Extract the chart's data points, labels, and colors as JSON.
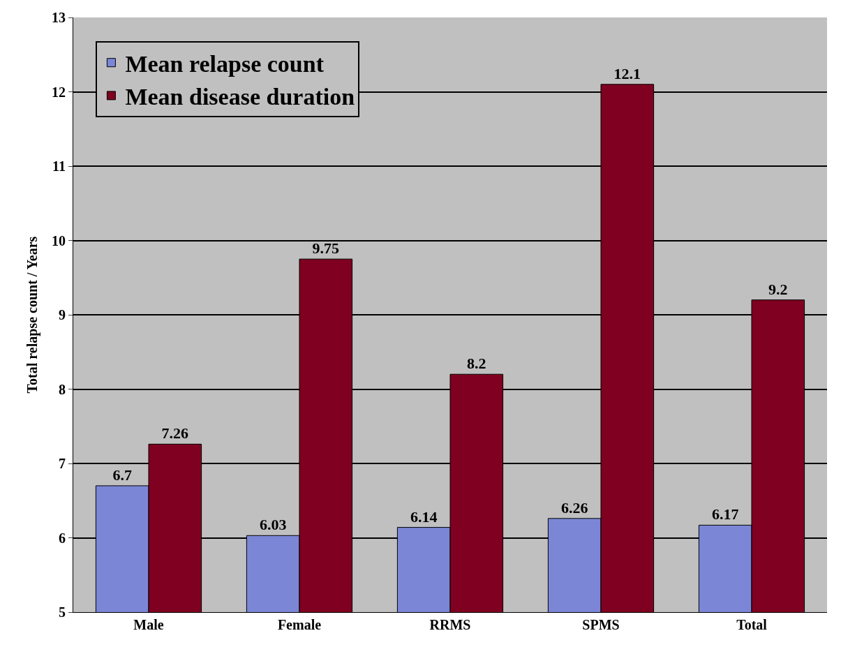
{
  "chart_data": {
    "type": "bar",
    "ylabel": "Total relapse count / Years",
    "categories": [
      "Male",
      "Female",
      "RRMS",
      "SPMS",
      "Total"
    ],
    "series": [
      {
        "name": "Mean relapse count",
        "color": "#7b86d6",
        "values": [
          6.7,
          6.03,
          6.14,
          6.26,
          6.17
        ]
      },
      {
        "name": "Mean disease duration",
        "color": "#7f0020",
        "values": [
          7.26,
          9.75,
          8.2,
          12.1,
          9.2
        ]
      }
    ],
    "ylim": [
      5,
      13
    ],
    "yticks": [
      5,
      6,
      7,
      8,
      9,
      10,
      11,
      12,
      13
    ],
    "grid": "y",
    "legend": "top left",
    "data_labels": true
  }
}
